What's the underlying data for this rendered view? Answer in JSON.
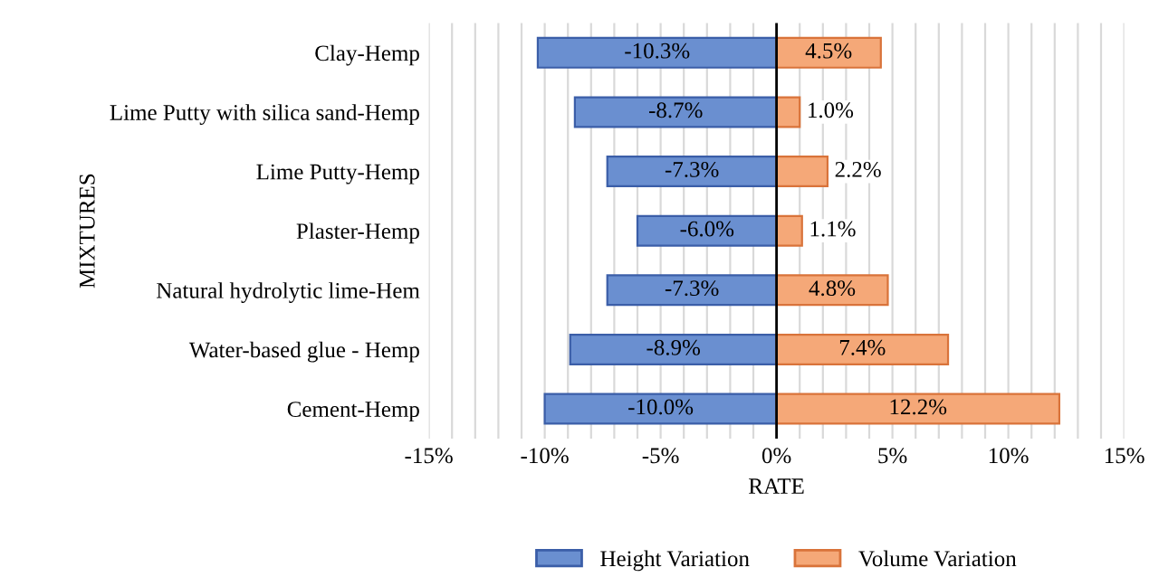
{
  "chart_data": {
    "type": "bar",
    "orientation": "horizontal",
    "categories": [
      "Clay-Hemp",
      "Lime Putty with silica sand-Hemp",
      "Lime Putty-Hemp",
      "Plaster-Hemp",
      "Natural hydrolytic lime-Hem",
      "Water-based glue - Hemp",
      "Cement-Hemp"
    ],
    "series": [
      {
        "name": "Height Variation",
        "color": "#6a8fd0",
        "values": [
          -10.3,
          -8.7,
          -7.3,
          -6.0,
          -7.3,
          -8.9,
          -10.0
        ],
        "value_labels": [
          "-10.3%",
          "-8.7%",
          "-7.3%",
          "-6.0%",
          "-7.3%",
          "-8.9%",
          "-10.0%"
        ]
      },
      {
        "name": "Volume Variation",
        "color": "#f5a878",
        "values": [
          4.5,
          1.0,
          2.2,
          1.1,
          4.8,
          7.4,
          12.2
        ],
        "value_labels": [
          "4.5%",
          "1.0%",
          "2.2%",
          "1.1%",
          "4.8%",
          "7.4%",
          "12.2%"
        ]
      }
    ],
    "xlabel": "RATE",
    "ylabel": "MIXTURES",
    "xlim": [
      -15,
      15
    ],
    "xticks": [
      {
        "value": -15,
        "label": "-15%"
      },
      {
        "value": -14,
        "label": null
      },
      {
        "value": -13,
        "label": null
      },
      {
        "value": -12,
        "label": null
      },
      {
        "value": -11,
        "label": null
      },
      {
        "value": -10,
        "label": "-10%"
      },
      {
        "value": -9,
        "label": null
      },
      {
        "value": -8,
        "label": null
      },
      {
        "value": -7,
        "label": null
      },
      {
        "value": -6,
        "label": null
      },
      {
        "value": -5,
        "label": "-5%"
      },
      {
        "value": -4,
        "label": null
      },
      {
        "value": -3,
        "label": null
      },
      {
        "value": -2,
        "label": null
      },
      {
        "value": -1,
        "label": null
      },
      {
        "value": 0,
        "label": "0%"
      },
      {
        "value": 1,
        "label": null
      },
      {
        "value": 2,
        "label": null
      },
      {
        "value": 3,
        "label": null
      },
      {
        "value": 4,
        "label": null
      },
      {
        "value": 5,
        "label": "5%"
      },
      {
        "value": 6,
        "label": null
      },
      {
        "value": 7,
        "label": null
      },
      {
        "value": 8,
        "label": null
      },
      {
        "value": 9,
        "label": null
      },
      {
        "value": 10,
        "label": "10%"
      },
      {
        "value": 11,
        "label": null
      },
      {
        "value": 12,
        "label": null
      },
      {
        "value": 13,
        "label": null
      },
      {
        "value": 14,
        "label": null
      },
      {
        "value": 15,
        "label": "15%"
      }
    ],
    "grid": "x",
    "legend": "bottom",
    "stacked": true
  }
}
